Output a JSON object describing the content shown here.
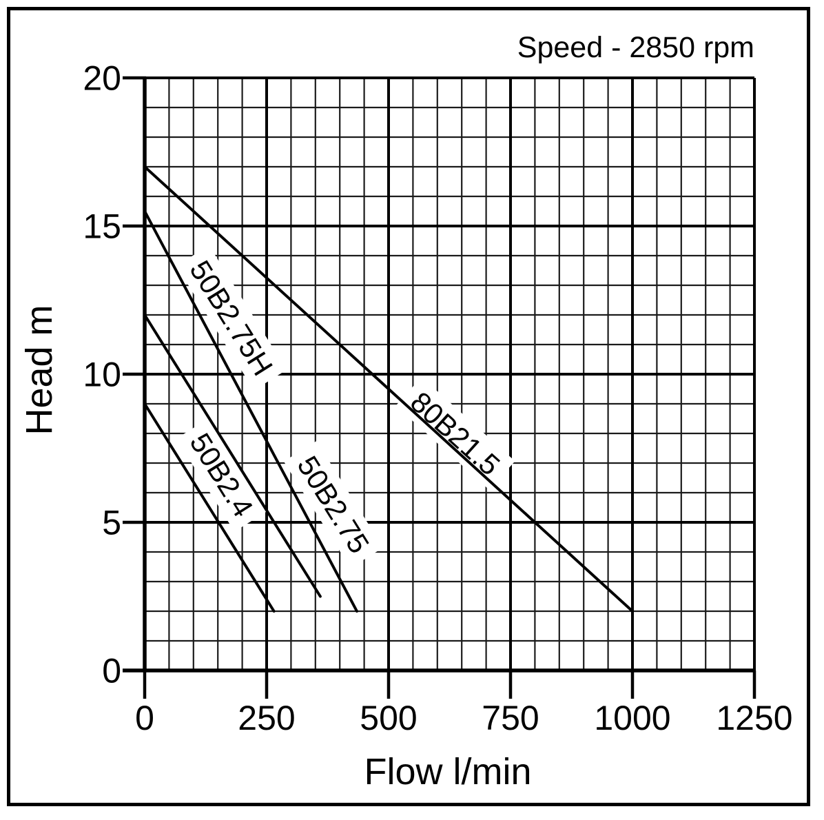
{
  "annotation": {
    "speed": "Speed - 2850 rpm"
  },
  "colors": {
    "ink": "#000000",
    "minor_grid": "#1b1b1b",
    "background": "#ffffff"
  },
  "chart_data": {
    "type": "line",
    "title": "",
    "annotation": "Speed - 2850 rpm",
    "xlabel": "Flow l/min",
    "ylabel": "Head m",
    "xlim": [
      0,
      1250
    ],
    "ylim": [
      0,
      20
    ],
    "x_ticks": [
      0,
      250,
      500,
      750,
      1000,
      1250
    ],
    "y_ticks": [
      0,
      5,
      10,
      15,
      20
    ],
    "x_minor_step": 50,
    "y_minor_step": 1,
    "grid": "on",
    "legend": "labels-on-curves",
    "series": [
      {
        "name": "80B21.5",
        "points": [
          [
            0,
            17
          ],
          [
            1000,
            2
          ]
        ],
        "label_at": [
          637,
          8.0
        ],
        "label_angle": 42
      },
      {
        "name": "50B2.75H",
        "points": [
          [
            0,
            15.5
          ],
          [
            435,
            2
          ]
        ],
        "label_at": [
          178,
          11.9
        ],
        "label_angle": 58
      },
      {
        "name": "50B2.75",
        "points": [
          [
            0,
            12
          ],
          [
            360,
            2.5
          ]
        ],
        "label_at": [
          387,
          5.6
        ],
        "label_angle": 58
      },
      {
        "name": "50B2.4",
        "points": [
          [
            0,
            9
          ],
          [
            265,
            2
          ]
        ],
        "label_at": [
          158,
          6.6
        ],
        "label_angle": 58
      }
    ]
  }
}
